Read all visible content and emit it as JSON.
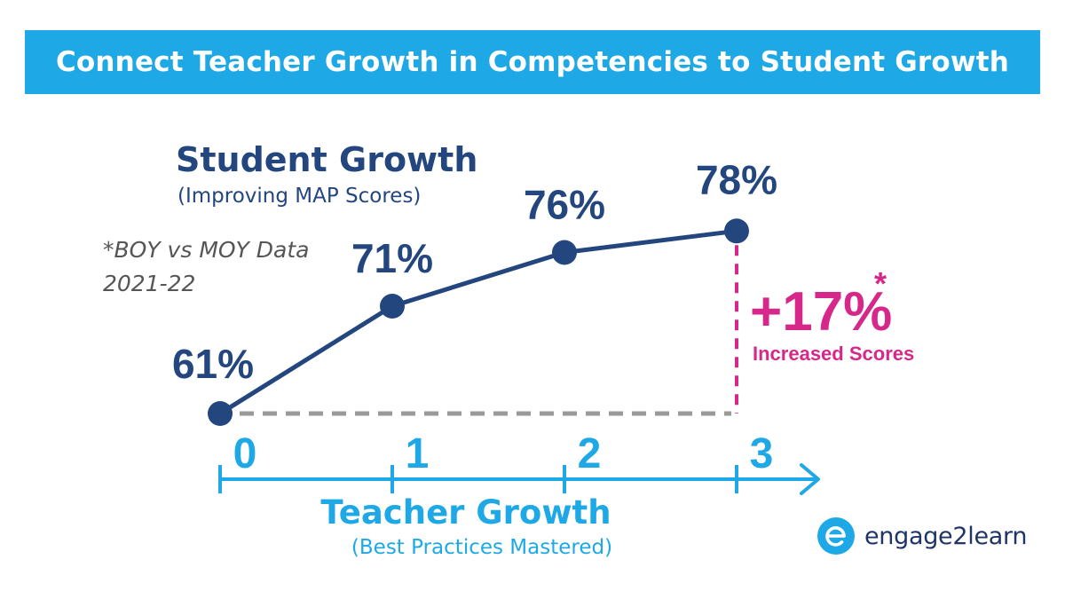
{
  "header": {
    "title": "Connect Teacher Growth in Competencies to Student Growth"
  },
  "chart_data": {
    "type": "line",
    "title": "",
    "x": [
      0,
      1,
      2,
      3
    ],
    "x_ticks": [
      "0",
      "1",
      "2",
      "3"
    ],
    "xlabel": "Teacher Growth",
    "xlabel_sub": "(Best Practices Mastered)",
    "ylabel": "Student Growth",
    "ylabel_sub": "(Improving MAP Scores)",
    "series": [
      {
        "values": [
          61,
          71,
          76,
          78
        ],
        "labels": [
          "61%",
          "71%",
          "76%",
          "78%"
        ]
      }
    ],
    "annotation": {
      "value": "+17%",
      "asterisk": "*",
      "text": "Increased Scores"
    },
    "note_lines": [
      "*BOY vs MOY Data",
      "2021-22"
    ],
    "colors": {
      "line": "#24467f",
      "axis": "#1ea9e6",
      "accent": "#d6288a",
      "baseline": "#9a9a9a"
    }
  },
  "logo": {
    "text": "engage2learn",
    "icon": "e-circle-logo-icon",
    "color": "#1ea9e6"
  }
}
